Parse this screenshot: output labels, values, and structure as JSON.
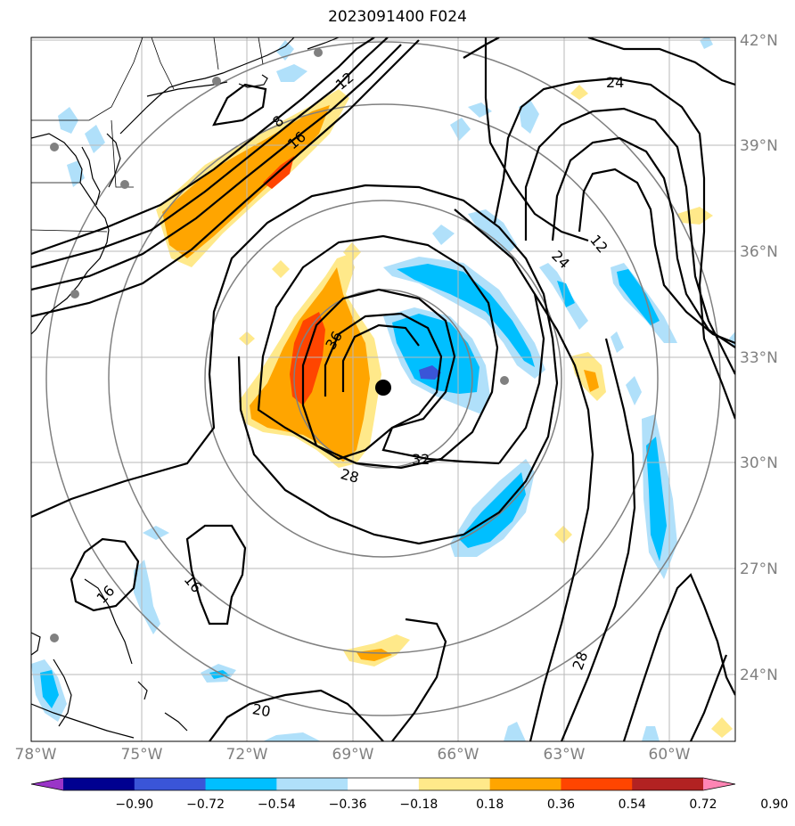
{
  "title": "2023091400 F024",
  "map": {
    "lon_ticks": [
      "78°W",
      "75°W",
      "72°W",
      "69°W",
      "66°W",
      "63°W",
      "60°W"
    ],
    "lat_ticks": [
      "42°N",
      "39°N",
      "36°N",
      "33°N",
      "30°N",
      "27°N",
      "24°N"
    ],
    "extent": {
      "lon": [
        -78,
        -58
      ],
      "lat": [
        22.1,
        42.1
      ]
    },
    "storm_center": {
      "lon": -68.9,
      "lat": 32.4
    },
    "range_rings": true,
    "grid": true,
    "contour_labels": [
      "12",
      "8",
      "16",
      "24",
      "12",
      "36",
      "32",
      "28",
      "16",
      "16",
      "28",
      "20",
      "24"
    ]
  },
  "colorbar": {
    "ticks": [
      "−0.90",
      "−0.72",
      "−0.54",
      "−0.36",
      "−0.18",
      "0.18",
      "0.36",
      "0.54",
      "0.72",
      "0.90"
    ],
    "colors": [
      "#9a35c8",
      "#000090",
      "#3a55d8",
      "#00bfff",
      "#b0e0fa",
      "#ffffff",
      "#ffe98a",
      "#ffa500",
      "#ff4500",
      "#b22222",
      "#ff85b4"
    ]
  },
  "colors": {
    "pos_light": "#ffe98a",
    "pos_mid": "#ffa500",
    "pos_strong": "#ff4500",
    "neg_light": "#b0e0fa",
    "neg_mid": "#00bfff",
    "neg_strong": "#3a55d8",
    "contour": "#000000",
    "ring": "#808080",
    "grid": "#b8b8b8",
    "city": "#808080"
  }
}
